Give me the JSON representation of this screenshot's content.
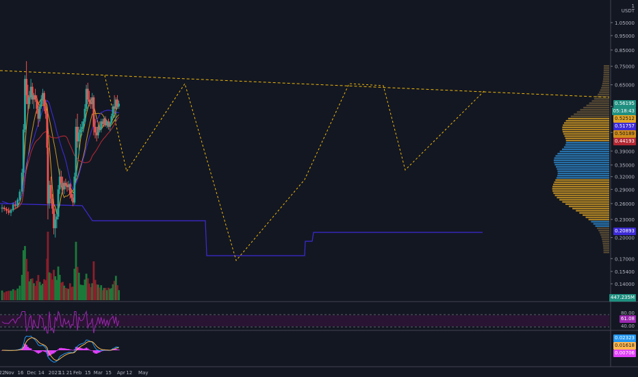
{
  "chart_data": {
    "type": "candlestick",
    "quote_currency": "USDT",
    "x_tick_labels": [
      "22",
      "Nov",
      "16",
      "Dec",
      "14",
      "2021",
      "11",
      "21",
      "Feb",
      "15",
      "Mar",
      "15",
      "Apr",
      "12",
      "May"
    ],
    "price_ticks": [
      "1.05000",
      "0.95000",
      "0.85000",
      "0.75000",
      "0.65000",
      "0.55000",
      "0.45000",
      "0.39000",
      "0.35000",
      "0.32000",
      "0.29000",
      "0.26000",
      "0.23000",
      "0.20000",
      "0.17000",
      "0.15400",
      "0.14000"
    ],
    "top_price_label": "1",
    "price_labels": {
      "last": "0.56195",
      "countdown": "05:18:43",
      "ma1": "0.52512",
      "ma2": "0.51757",
      "ma3": "0.50189",
      "ma4": "0.44193",
      "vwap_low": "0.20893"
    },
    "volume_label": "447.235M",
    "rsi": {
      "levels": [
        "80.00",
        "40.00"
      ],
      "value": "61.08"
    },
    "macd": {
      "values": [
        "0.02323",
        "0.01618",
        "0.00706"
      ]
    },
    "colors": {
      "background": "#131722",
      "up": "#26a69a",
      "down": "#ef5350",
      "ma_orange": "#e0a526",
      "ma_red": "#b22833",
      "vwap_blue": "#3d2bd6",
      "trend_dashed": "#f0b90b",
      "rsi_line": "#9c27b0",
      "macd_hist": "#e040fb",
      "macd_line": "#2196f3",
      "signal_line": "#ffb74d"
    },
    "candles": [
      {
        "d": "2020-10-22",
        "o": 0.25,
        "h": 0.258,
        "l": 0.243,
        "c": 0.252
      },
      {
        "d": "2020-10-25",
        "o": 0.252,
        "h": 0.256,
        "l": 0.245,
        "c": 0.249
      },
      {
        "d": "2020-10-28",
        "o": 0.249,
        "h": 0.253,
        "l": 0.24,
        "c": 0.246
      },
      {
        "d": "2020-10-31",
        "o": 0.246,
        "h": 0.252,
        "l": 0.238,
        "c": 0.242
      },
      {
        "d": "2020-11-03",
        "o": 0.242,
        "h": 0.25,
        "l": 0.236,
        "c": 0.247
      },
      {
        "d": "2020-11-06",
        "o": 0.247,
        "h": 0.262,
        "l": 0.244,
        "c": 0.258
      },
      {
        "d": "2020-11-09",
        "o": 0.258,
        "h": 0.266,
        "l": 0.25,
        "c": 0.255
      },
      {
        "d": "2020-11-12",
        "o": 0.255,
        "h": 0.272,
        "l": 0.252,
        "c": 0.268
      },
      {
        "d": "2020-11-15",
        "o": 0.268,
        "h": 0.29,
        "l": 0.262,
        "c": 0.285
      },
      {
        "d": "2020-11-18",
        "o": 0.285,
        "h": 0.34,
        "l": 0.28,
        "c": 0.33
      },
      {
        "d": "2020-11-20",
        "o": 0.33,
        "h": 0.48,
        "l": 0.32,
        "c": 0.46
      },
      {
        "d": "2020-11-22",
        "o": 0.46,
        "h": 0.7,
        "l": 0.45,
        "c": 0.68
      },
      {
        "d": "2020-11-24",
        "o": 0.68,
        "h": 0.78,
        "l": 0.56,
        "c": 0.6
      },
      {
        "d": "2020-11-26",
        "o": 0.6,
        "h": 0.65,
        "l": 0.52,
        "c": 0.56
      },
      {
        "d": "2020-11-28",
        "o": 0.56,
        "h": 0.62,
        "l": 0.54,
        "c": 0.59
      },
      {
        "d": "2020-11-30",
        "o": 0.59,
        "h": 0.68,
        "l": 0.58,
        "c": 0.64
      },
      {
        "d": "2020-12-02",
        "o": 0.64,
        "h": 0.66,
        "l": 0.56,
        "c": 0.58
      },
      {
        "d": "2020-12-04",
        "o": 0.58,
        "h": 0.61,
        "l": 0.54,
        "c": 0.6
      },
      {
        "d": "2020-12-06",
        "o": 0.6,
        "h": 0.63,
        "l": 0.57,
        "c": 0.58
      },
      {
        "d": "2020-12-08",
        "o": 0.58,
        "h": 0.6,
        "l": 0.52,
        "c": 0.54
      },
      {
        "d": "2020-12-10",
        "o": 0.54,
        "h": 0.57,
        "l": 0.47,
        "c": 0.5
      },
      {
        "d": "2020-12-12",
        "o": 0.5,
        "h": 0.56,
        "l": 0.49,
        "c": 0.55
      },
      {
        "d": "2020-12-14",
        "o": 0.55,
        "h": 0.6,
        "l": 0.54,
        "c": 0.58
      },
      {
        "d": "2020-12-16",
        "o": 0.58,
        "h": 0.63,
        "l": 0.56,
        "c": 0.61
      },
      {
        "d": "2020-12-18",
        "o": 0.61,
        "h": 0.62,
        "l": 0.53,
        "c": 0.55
      },
      {
        "d": "2020-12-20",
        "o": 0.55,
        "h": 0.58,
        "l": 0.5,
        "c": 0.52
      },
      {
        "d": "2020-12-22",
        "o": 0.52,
        "h": 0.53,
        "l": 0.38,
        "c": 0.4
      },
      {
        "d": "2020-12-23",
        "o": 0.4,
        "h": 0.42,
        "l": 0.23,
        "c": 0.26
      },
      {
        "d": "2020-12-25",
        "o": 0.26,
        "h": 0.31,
        "l": 0.25,
        "c": 0.3
      },
      {
        "d": "2020-12-27",
        "o": 0.3,
        "h": 0.32,
        "l": 0.26,
        "c": 0.27
      },
      {
        "d": "2020-12-29",
        "o": 0.27,
        "h": 0.28,
        "l": 0.24,
        "c": 0.25
      },
      {
        "d": "2020-12-31",
        "o": 0.25,
        "h": 0.26,
        "l": 0.205,
        "c": 0.215
      },
      {
        "d": "2021-01-02",
        "o": 0.215,
        "h": 0.24,
        "l": 0.2,
        "c": 0.23
      },
      {
        "d": "2021-01-04",
        "o": 0.23,
        "h": 0.25,
        "l": 0.215,
        "c": 0.235
      },
      {
        "d": "2021-01-06",
        "o": 0.235,
        "h": 0.3,
        "l": 0.23,
        "c": 0.29
      },
      {
        "d": "2021-01-08",
        "o": 0.29,
        "h": 0.34,
        "l": 0.28,
        "c": 0.32
      },
      {
        "d": "2021-01-10",
        "o": 0.32,
        "h": 0.335,
        "l": 0.295,
        "c": 0.305
      },
      {
        "d": "2021-01-12",
        "o": 0.305,
        "h": 0.32,
        "l": 0.28,
        "c": 0.29
      },
      {
        "d": "2021-01-14",
        "o": 0.29,
        "h": 0.31,
        "l": 0.28,
        "c": 0.305
      },
      {
        "d": "2021-01-16",
        "o": 0.305,
        "h": 0.315,
        "l": 0.29,
        "c": 0.298
      },
      {
        "d": "2021-01-18",
        "o": 0.298,
        "h": 0.308,
        "l": 0.285,
        "c": 0.295
      },
      {
        "d": "2021-01-20",
        "o": 0.295,
        "h": 0.31,
        "l": 0.288,
        "c": 0.302
      },
      {
        "d": "2021-01-22",
        "o": 0.302,
        "h": 0.305,
        "l": 0.27,
        "c": 0.28
      },
      {
        "d": "2021-01-24",
        "o": 0.28,
        "h": 0.29,
        "l": 0.265,
        "c": 0.272
      },
      {
        "d": "2021-01-26",
        "o": 0.272,
        "h": 0.28,
        "l": 0.255,
        "c": 0.262
      },
      {
        "d": "2021-01-28",
        "o": 0.262,
        "h": 0.33,
        "l": 0.258,
        "c": 0.32
      },
      {
        "d": "2021-01-30",
        "o": 0.32,
        "h": 0.5,
        "l": 0.31,
        "c": 0.47
      },
      {
        "d": "2021-02-01",
        "o": 0.47,
        "h": 0.52,
        "l": 0.4,
        "c": 0.42
      },
      {
        "d": "2021-02-03",
        "o": 0.42,
        "h": 0.47,
        "l": 0.38,
        "c": 0.45
      },
      {
        "d": "2021-02-05",
        "o": 0.45,
        "h": 0.48,
        "l": 0.43,
        "c": 0.46
      },
      {
        "d": "2021-02-07",
        "o": 0.46,
        "h": 0.49,
        "l": 0.44,
        "c": 0.47
      },
      {
        "d": "2021-02-09",
        "o": 0.47,
        "h": 0.5,
        "l": 0.45,
        "c": 0.49
      },
      {
        "d": "2021-02-11",
        "o": 0.49,
        "h": 0.56,
        "l": 0.48,
        "c": 0.54
      },
      {
        "d": "2021-02-13",
        "o": 0.54,
        "h": 0.65,
        "l": 0.53,
        "c": 0.63
      },
      {
        "d": "2021-02-15",
        "o": 0.63,
        "h": 0.66,
        "l": 0.56,
        "c": 0.58
      },
      {
        "d": "2021-02-17",
        "o": 0.58,
        "h": 0.62,
        "l": 0.55,
        "c": 0.57
      },
      {
        "d": "2021-02-19",
        "o": 0.57,
        "h": 0.59,
        "l": 0.54,
        "c": 0.56
      },
      {
        "d": "2021-02-21",
        "o": 0.56,
        "h": 0.61,
        "l": 0.54,
        "c": 0.59
      },
      {
        "d": "2021-02-23",
        "o": 0.59,
        "h": 0.6,
        "l": 0.44,
        "c": 0.47
      },
      {
        "d": "2021-02-25",
        "o": 0.47,
        "h": 0.5,
        "l": 0.43,
        "c": 0.45
      },
      {
        "d": "2021-02-27",
        "o": 0.45,
        "h": 0.47,
        "l": 0.42,
        "c": 0.44
      },
      {
        "d": "2021-03-01",
        "o": 0.44,
        "h": 0.48,
        "l": 0.43,
        "c": 0.47
      },
      {
        "d": "2021-03-03",
        "o": 0.47,
        "h": 0.49,
        "l": 0.45,
        "c": 0.46
      },
      {
        "d": "2021-03-05",
        "o": 0.46,
        "h": 0.5,
        "l": 0.45,
        "c": 0.49
      },
      {
        "d": "2021-03-07",
        "o": 0.49,
        "h": 0.5,
        "l": 0.47,
        "c": 0.48
      },
      {
        "d": "2021-03-09",
        "o": 0.48,
        "h": 0.51,
        "l": 0.47,
        "c": 0.5
      },
      {
        "d": "2021-03-11",
        "o": 0.5,
        "h": 0.51,
        "l": 0.47,
        "c": 0.475
      },
      {
        "d": "2021-03-13",
        "o": 0.475,
        "h": 0.495,
        "l": 0.465,
        "c": 0.49
      },
      {
        "d": "2021-03-15",
        "o": 0.49,
        "h": 0.5,
        "l": 0.46,
        "c": 0.47
      },
      {
        "d": "2021-03-17",
        "o": 0.47,
        "h": 0.49,
        "l": 0.455,
        "c": 0.485
      },
      {
        "d": "2021-03-19",
        "o": 0.485,
        "h": 0.52,
        "l": 0.48,
        "c": 0.51
      },
      {
        "d": "2021-03-21",
        "o": 0.51,
        "h": 0.56,
        "l": 0.5,
        "c": 0.55
      },
      {
        "d": "2021-03-23",
        "o": 0.55,
        "h": 0.6,
        "l": 0.52,
        "c": 0.54
      },
      {
        "d": "2021-03-25",
        "o": 0.54,
        "h": 0.59,
        "l": 0.49,
        "c": 0.58
      },
      {
        "d": "2021-03-27",
        "o": 0.58,
        "h": 0.6,
        "l": 0.54,
        "c": 0.55
      },
      {
        "d": "2021-03-29",
        "o": 0.55,
        "h": 0.575,
        "l": 0.54,
        "c": 0.562
      }
    ]
  }
}
